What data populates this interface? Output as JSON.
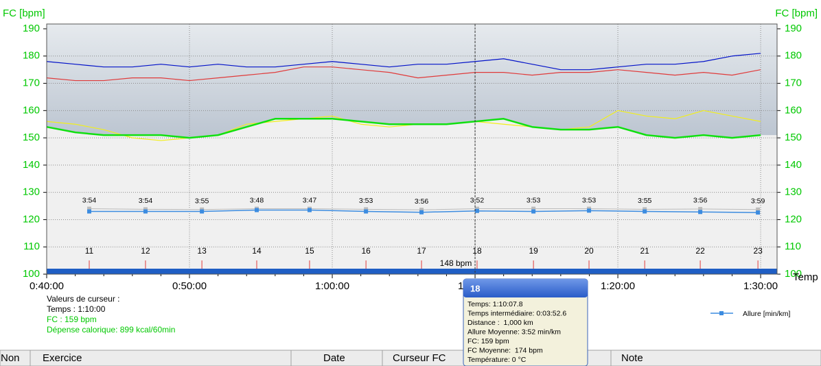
{
  "chart_data": {
    "type": "line",
    "y_label": "FC [bpm]",
    "y2_label": "FC [bpm]",
    "x_label": "Temp",
    "xlim": [
      40,
      91.15
    ],
    "xticks": [
      {
        "value": 40,
        "label": "0:40:00"
      },
      {
        "value": 50,
        "label": "0:50:00"
      },
      {
        "value": 60,
        "label": "1:00:00"
      },
      {
        "value": 70,
        "label": "1:10:00"
      },
      {
        "value": 80,
        "label": "1:20:00"
      },
      {
        "value": 90,
        "label": "1:30:00"
      }
    ],
    "ylim": [
      100,
      190
    ],
    "yticks": [
      100,
      110,
      120,
      130,
      140,
      150,
      160,
      170,
      180,
      190
    ],
    "grid": true,
    "x": [
      40,
      42,
      44,
      46,
      48,
      50,
      52,
      54,
      56,
      58,
      60,
      62,
      64,
      66,
      68,
      70,
      72,
      74,
      76,
      78,
      80,
      82,
      84,
      86,
      88,
      90
    ],
    "series": [
      {
        "color": "#0010c8",
        "values": [
          178,
          177,
          176,
          176,
          177,
          176,
          177,
          176,
          176,
          177,
          178,
          177,
          176,
          177,
          177,
          178,
          179,
          177,
          175,
          175,
          176,
          177,
          177,
          178,
          180,
          181
        ]
      },
      {
        "color": "#e03a3a",
        "values": [
          172,
          171,
          171,
          172,
          172,
          171,
          172,
          173,
          174,
          176,
          176,
          175,
          174,
          172,
          173,
          174,
          174,
          173,
          174,
          174,
          175,
          174,
          173,
          174,
          173,
          175
        ]
      },
      {
        "color": "#f2ef1a",
        "values": [
          156,
          155,
          153,
          150,
          149,
          150,
          151,
          155,
          156,
          157,
          158,
          155,
          154,
          155,
          155,
          156,
          155,
          154,
          153,
          154,
          160,
          158,
          157,
          160,
          158,
          156
        ]
      },
      {
        "color": "#10e010",
        "values": [
          154,
          152,
          151,
          151,
          151,
          150,
          151,
          154,
          157,
          157,
          157,
          156,
          155,
          155,
          155,
          156,
          157,
          154,
          153,
          153,
          154,
          151,
          150,
          151,
          150,
          151
        ]
      }
    ],
    "cursor_x": 70,
    "lap_x": [
      42.98,
      46.92,
      50.87,
      54.71,
      58.41,
      62.36,
      66.25,
      70.14,
      74.09,
      77.98,
      81.88,
      85.77,
      89.81
    ],
    "lap_numbers": [
      "11",
      "12",
      "13",
      "14",
      "15",
      "16",
      "17",
      "18",
      "19",
      "20",
      "21",
      "22",
      "23"
    ],
    "lap_paces": [
      "3:54",
      "3:54",
      "3:55",
      "3:48",
      "3:47",
      "3:53",
      "3:56",
      "3:52",
      "3:53",
      "3:53",
      "3:55",
      "3:56",
      "3:59"
    ],
    "pace_series": {
      "name": "Allure [min/km]",
      "color": "#3c8ce0",
      "values": [
        123,
        123,
        123,
        123.5,
        123.5,
        123,
        122.7,
        123.2,
        123,
        123.3,
        123,
        122.8,
        122.6
      ]
    },
    "grey_series": {
      "color": "#bbbbbb",
      "values": [
        124,
        123.8,
        123.7,
        124,
        124,
        123.8,
        123.6,
        124,
        124,
        124,
        123.8,
        123.9,
        123.7
      ]
    },
    "bottom_label": "148 bpm"
  },
  "cursor_panel": {
    "title": "Valeurs de curseur :",
    "time": "Temps : 1:10:00",
    "hr": "FC : 159 bpm",
    "calories": "Dépense calorique: 899 kcal/60min"
  },
  "tooltip": {
    "title": "18",
    "lines": [
      "Temps: 1:10:07.8",
      "Temps intermédiaire: 0:03:52.6",
      "Distance :  1,000 km",
      "Allure Moyenne: 3:52 min/km",
      "FC: 159 bpm",
      "FC Moyenne:  174 bpm",
      "Température: 0 °C"
    ]
  },
  "table_header": [
    "Non",
    "Exercice",
    "Date",
    "Curseur FC",
    "Note"
  ]
}
